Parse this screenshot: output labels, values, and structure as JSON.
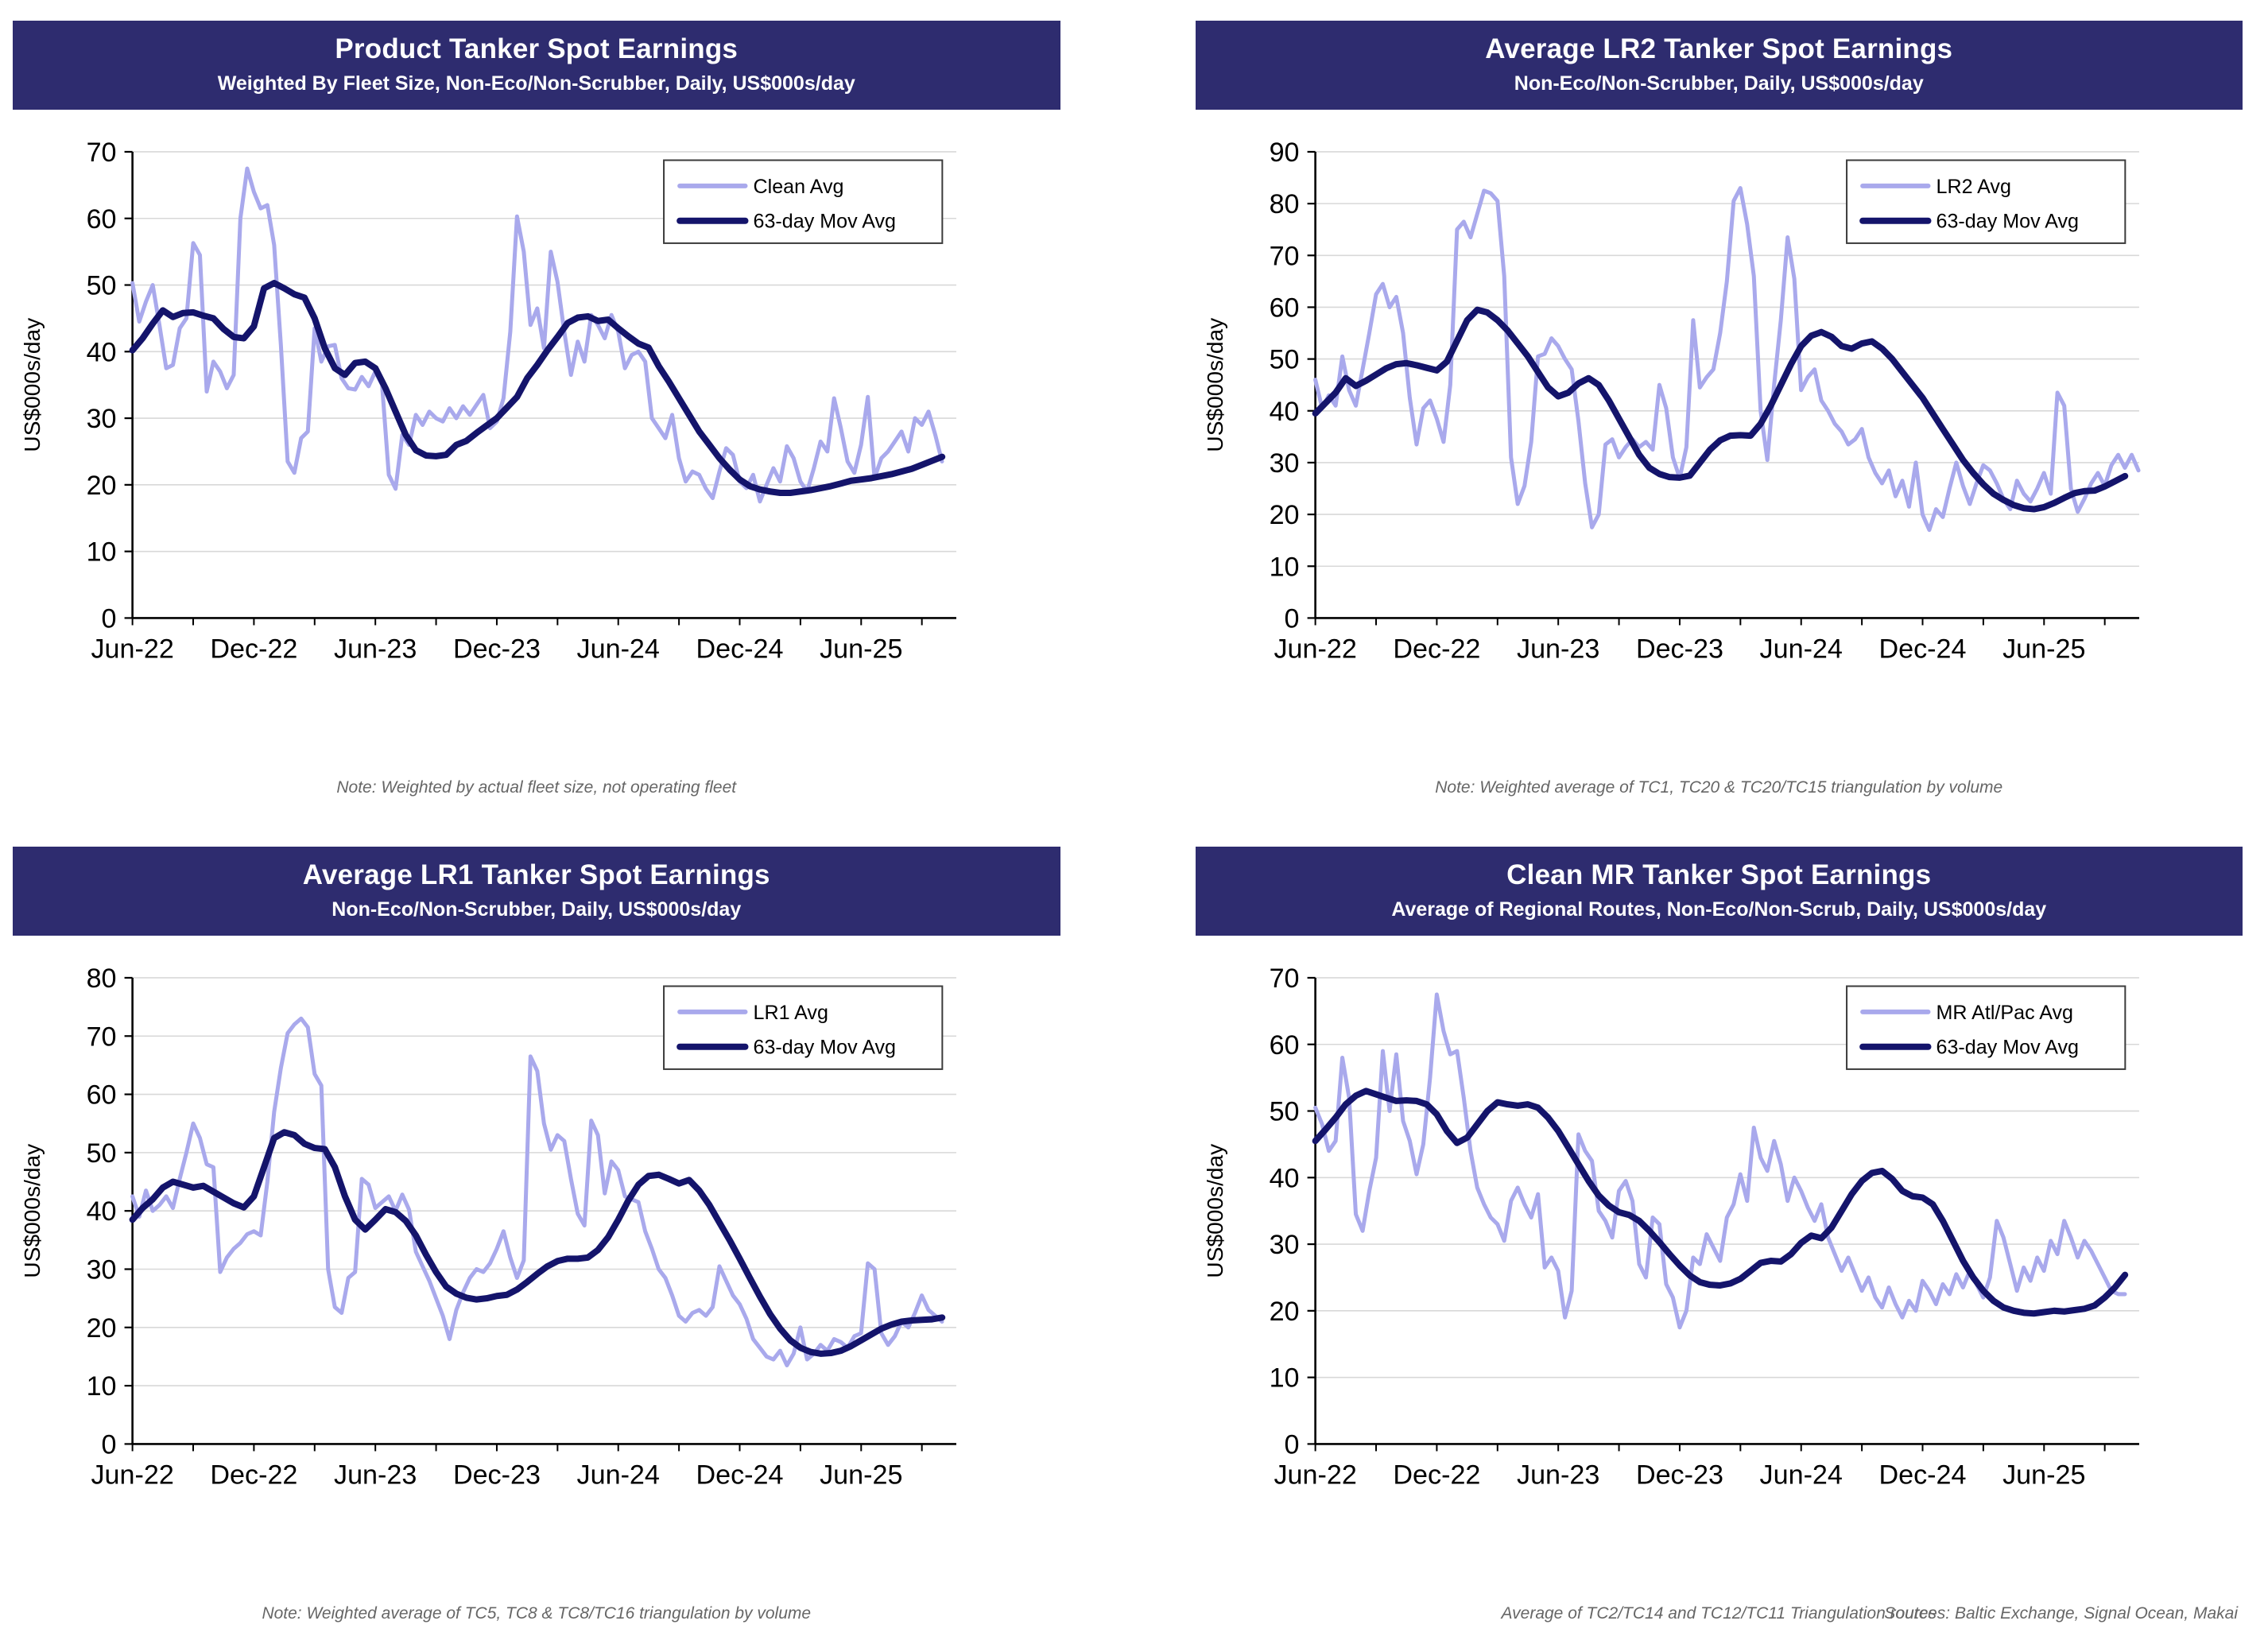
{
  "styles": {
    "header_bg": "#2E2C6F",
    "daily_color": "#A9A9EC",
    "ma_color": "#14146B",
    "grid_color": "#D8D8D8",
    "axis_color": "#000000",
    "note_color": "#666666",
    "legend_border": "#3C3C3C"
  },
  "chart_data": [
    {
      "type": "line",
      "title": "Product Tanker Spot Earnings",
      "subtitle": "Weighted By Fleet Size, Non-Eco/Non-Scrubber, Daily, US$000s/day",
      "ylabel": "US$000s/day",
      "ylim": [
        0,
        70
      ],
      "ytick_step": 10,
      "x_tick_labels": [
        "Jun-22",
        "Dec-22",
        "Jun-23",
        "Dec-23",
        "Jun-24",
        "Dec-24",
        "Jun-25"
      ],
      "x_label_step_months": 6,
      "x_minor_tick_step_months": 3,
      "x_domain_months": 40.7,
      "grid": true,
      "legend_position": "top-right",
      "notes": [
        "Note: Weighted by actual fleet size, not operating fleet"
      ],
      "series": [
        {
          "name": "Clean Avg",
          "role": "daily",
          "x0": 0,
          "dx": 0.3333,
          "values": [
            50.3,
            44.5,
            47.5,
            50,
            44,
            37.5,
            38,
            43.5,
            45,
            56.3,
            54.5,
            34,
            38.5,
            37,
            34.5,
            36.5,
            60,
            67.5,
            64,
            61.5,
            62,
            56,
            41,
            23.5,
            21.8,
            27,
            28,
            43.5,
            38.5,
            40.8,
            41,
            36,
            34.5,
            34.3,
            36.2,
            34.8,
            37,
            35,
            21.5,
            19.4,
            27.5,
            26,
            30.5,
            29,
            31,
            30,
            29.5,
            31.5,
            30,
            31.8,
            30.5,
            32,
            33.5,
            28.5,
            29.5,
            33,
            43,
            60.3,
            55,
            44,
            46.5,
            40.5,
            55,
            50.5,
            43,
            36.5,
            41.5,
            38.5,
            45.5,
            44,
            42,
            45.5,
            43,
            37.5,
            39.5,
            40,
            38.5,
            30,
            28.5,
            27,
            30.5,
            24,
            20.5,
            22,
            21.5,
            19.4,
            18,
            22,
            25.5,
            24.5,
            20.5,
            19.5,
            21.5,
            17.5,
            20,
            22.5,
            20.5,
            25.8,
            24,
            20.5,
            19,
            22.5,
            26.5,
            25,
            33,
            28.5,
            23.5,
            21.8,
            26,
            33.2,
            21,
            24,
            25,
            26.5,
            28,
            25,
            30,
            29,
            31,
            27.5,
            23.5
          ]
        },
        {
          "name": "63-day Mov Avg",
          "role": "ma",
          "x0": 0,
          "dx": 0.5,
          "values": [
            40.2,
            42,
            44.2,
            46.2,
            45.2,
            45.8,
            45.9,
            45.4,
            45,
            43.4,
            42.2,
            42,
            43.8,
            49.5,
            50.3,
            49.5,
            48.6,
            48.1,
            45,
            40.5,
            37.5,
            36.5,
            38.3,
            38.5,
            37.5,
            34.5,
            31,
            27.5,
            25.2,
            24.4,
            24.3,
            24.5,
            26,
            26.6,
            27.8,
            28.9,
            30,
            31.6,
            33.2,
            36,
            38,
            40.2,
            42.2,
            44.3,
            45.1,
            45.3,
            44.6,
            44.8,
            43.5,
            42.3,
            41.2,
            40.6,
            37.8,
            35.5,
            33,
            30.5,
            28,
            26,
            24,
            22.3,
            20.8,
            19.8,
            19.3,
            19,
            18.8,
            18.8,
            19,
            19.2,
            19.5,
            19.8,
            20.2,
            20.6,
            20.8,
            21,
            21.3,
            21.6,
            22,
            22.4,
            23,
            23.6,
            24.2
          ]
        }
      ]
    },
    {
      "type": "line",
      "title": "Average LR2 Tanker Spot Earnings",
      "subtitle": "Non-Eco/Non-Scrubber, Daily, US$000s/day",
      "ylabel": "US$000s/day",
      "ylim": [
        0,
        90
      ],
      "ytick_step": 10,
      "x_tick_labels": [
        "Jun-22",
        "Dec-22",
        "Jun-23",
        "Dec-23",
        "Jun-24",
        "Dec-24",
        "Jun-25"
      ],
      "x_label_step_months": 6,
      "x_minor_tick_step_months": 3,
      "x_domain_months": 40.7,
      "grid": true,
      "legend_position": "top-right",
      "notes": [
        "Note: Weighted average of TC1, TC20 & TC20/TC15 triangulation by volume"
      ],
      "series": [
        {
          "name": "LR2 Avg",
          "role": "daily",
          "x0": 0,
          "dx": 0.3333,
          "values": [
            46,
            40.5,
            43,
            41,
            50.5,
            44,
            41,
            48,
            55,
            62.5,
            64.5,
            60,
            62,
            55,
            42.5,
            33.5,
            40.5,
            42,
            38.5,
            34,
            45,
            75,
            76.5,
            73.5,
            78,
            82.5,
            82,
            80.5,
            66,
            31,
            22,
            25.5,
            34,
            50.5,
            51,
            54,
            52.5,
            50,
            48,
            38,
            26,
            17.5,
            20,
            33.5,
            34.5,
            31,
            33,
            34.5,
            33,
            34,
            32.5,
            45,
            40.5,
            31,
            27,
            33,
            57.5,
            44.5,
            46.5,
            48,
            55,
            65,
            80.5,
            83,
            76,
            66,
            40,
            30.5,
            45,
            57.5,
            73.5,
            65.5,
            44,
            46.5,
            48,
            42,
            40,
            37.5,
            36,
            33.5,
            34.5,
            36.5,
            31,
            28,
            26,
            28.5,
            23.5,
            26.5,
            21.5,
            30,
            20,
            17,
            21,
            19.5,
            25,
            30,
            25.5,
            22,
            26,
            29.5,
            28.5,
            26,
            23,
            21,
            26.5,
            24,
            22.5,
            25,
            28,
            24,
            43.5,
            41,
            25,
            20.5,
            23,
            26,
            28,
            25.5,
            29.5,
            31.5,
            29,
            31.5,
            28.5
          ]
        },
        {
          "name": "63-day Mov Avg",
          "role": "ma",
          "x0": 0,
          "dx": 0.5,
          "values": [
            39.5,
            41.5,
            43.5,
            46.3,
            44.8,
            45.8,
            47,
            48.2,
            49,
            49.2,
            48.8,
            48.3,
            47.8,
            49.5,
            53.5,
            57.5,
            59.5,
            59,
            57.5,
            55.5,
            53,
            50.5,
            47.5,
            44.5,
            42.8,
            43.5,
            45.3,
            46.3,
            45,
            42,
            38.5,
            35,
            31.5,
            29,
            27.8,
            27.2,
            27.1,
            27.5,
            30,
            32.5,
            34.3,
            35.2,
            35.3,
            35.2,
            37.5,
            41,
            45,
            49,
            52.5,
            54.5,
            55.2,
            54.3,
            52.5,
            52,
            53,
            53.4,
            52,
            50,
            47.5,
            45,
            42.5,
            39.5,
            36.5,
            33.5,
            30.5,
            28,
            25.8,
            24,
            22.8,
            21.8,
            21.2,
            21,
            21.4,
            22.2,
            23.2,
            24.1,
            24.5,
            24.6,
            25.4,
            26.4,
            27.4
          ]
        }
      ]
    },
    {
      "type": "line",
      "title": "Average LR1 Tanker Spot Earnings",
      "subtitle": "Non-Eco/Non-Scrubber, Daily, US$000s/day",
      "ylabel": "US$000s/day",
      "ylim": [
        0,
        80
      ],
      "ytick_step": 10,
      "x_tick_labels": [
        "Jun-22",
        "Dec-22",
        "Jun-23",
        "Dec-23",
        "Jun-24",
        "Dec-24",
        "Jun-25"
      ],
      "x_label_step_months": 6,
      "x_minor_tick_step_months": 3,
      "x_domain_months": 40.7,
      "grid": true,
      "legend_position": "top-right",
      "notes": [
        "Note: Weighted average of TC5, TC8 & TC8/TC16 triangulation by volume"
      ],
      "series": [
        {
          "name": "LR1 Avg",
          "role": "daily",
          "x0": 0,
          "dx": 0.3333,
          "values": [
            42.5,
            39,
            43.5,
            40,
            41,
            42.5,
            40.5,
            45.5,
            50,
            55,
            52.5,
            48,
            47.5,
            29.5,
            32,
            33.5,
            34.5,
            36,
            36.5,
            35.8,
            45,
            57,
            64.5,
            70.5,
            72,
            73,
            71.5,
            63.5,
            61.5,
            30,
            23.5,
            22.5,
            28.5,
            29.5,
            45.5,
            44.5,
            40.5,
            41.5,
            42.5,
            40,
            42.8,
            40.2,
            33,
            30.5,
            28,
            25,
            22,
            18,
            23,
            26,
            28.5,
            30,
            29.5,
            31,
            33.5,
            36.5,
            32,
            28.5,
            31.5,
            66.5,
            64,
            55,
            50.5,
            53,
            52,
            45.5,
            39.5,
            37.5,
            55.5,
            53,
            43,
            48.5,
            47,
            42.5,
            42,
            41.5,
            36.5,
            33.5,
            30,
            28.5,
            25.5,
            22,
            21,
            22.5,
            23,
            22,
            23.5,
            30.5,
            28,
            25.5,
            24,
            21.5,
            18,
            16.5,
            15,
            14.5,
            16,
            13.5,
            15.5,
            20,
            14.5,
            15.5,
            17,
            16,
            18,
            17.5,
            16.5,
            18.5,
            19,
            31,
            30,
            19,
            17,
            18.5,
            21,
            20,
            22.5,
            25.5,
            23,
            22,
            21
          ]
        },
        {
          "name": "63-day Mov Avg",
          "role": "ma",
          "x0": 0,
          "dx": 0.5,
          "values": [
            38.5,
            40.5,
            42,
            44,
            45,
            44.5,
            44,
            44.3,
            43.3,
            42.3,
            41.3,
            40.6,
            42.5,
            47.5,
            52.5,
            53.5,
            53,
            51.5,
            50.8,
            50.6,
            47.5,
            42.5,
            38.5,
            36.8,
            38.5,
            40.3,
            39.8,
            38.3,
            35.8,
            32.5,
            29.5,
            27,
            25.8,
            25.1,
            24.8,
            25,
            25.4,
            25.6,
            26.5,
            27.8,
            29.2,
            30.5,
            31.4,
            31.8,
            31.8,
            32,
            33.3,
            35.5,
            38.5,
            41.8,
            44.5,
            46,
            46.2,
            45.5,
            44.7,
            45.3,
            43.5,
            41,
            38,
            35,
            31.8,
            28.5,
            25.3,
            22.3,
            19.8,
            17.8,
            16.5,
            15.8,
            15.5,
            15.6,
            16,
            16.8,
            17.8,
            18.8,
            19.8,
            20.5,
            21,
            21.2,
            21.3,
            21.4,
            21.7
          ]
        }
      ]
    },
    {
      "type": "line",
      "title": "Clean MR Tanker Spot Earnings",
      "subtitle": "Average of Regional Routes, Non-Eco/Non-Scrub, Daily, US$000s/day",
      "ylabel": "US$000s/day",
      "ylim": [
        0,
        70
      ],
      "ytick_step": 10,
      "x_tick_labels": [
        "Jun-22",
        "Dec-22",
        "Jun-23",
        "Dec-23",
        "Jun-24",
        "Dec-24",
        "Jun-25"
      ],
      "x_label_step_months": 6,
      "x_minor_tick_step_months": 3,
      "x_domain_months": 40.7,
      "grid": true,
      "legend_position": "top-right",
      "notes": [
        "Average of TC2/TC14 and TC12/TC11 Triangulation routes",
        "Sources: Baltic Exchange, Signal Ocean, Makai"
      ],
      "series": [
        {
          "name": "MR Atl/Pac Avg",
          "role": "daily",
          "x0": 0,
          "dx": 0.3333,
          "values": [
            50.5,
            48,
            44,
            45.5,
            58,
            52,
            34.5,
            32,
            38,
            43,
            59,
            50,
            58.5,
            48.5,
            45.5,
            40.5,
            45,
            55,
            67.5,
            62,
            58.5,
            59,
            52,
            44,
            38.5,
            36,
            34,
            33,
            30.5,
            36.5,
            38.5,
            36,
            34,
            37.5,
            26.5,
            28,
            26,
            19,
            23,
            46.5,
            44,
            42.5,
            35,
            33.5,
            31,
            38,
            39.5,
            36.5,
            27,
            25,
            34,
            33,
            24,
            22,
            17.5,
            20,
            28,
            27,
            31.5,
            29.5,
            27.5,
            34,
            36,
            40.5,
            36.5,
            47.5,
            43,
            41,
            45.5,
            42,
            36.5,
            40,
            38,
            35.5,
            33.5,
            36,
            31,
            28.5,
            26,
            28,
            25.5,
            23,
            25,
            22,
            20.5,
            23.5,
            21,
            19,
            21.5,
            20,
            24.5,
            23,
            21,
            24,
            22.5,
            25.5,
            23.5,
            26,
            24,
            22,
            25,
            33.5,
            31,
            27,
            23,
            26.5,
            24.5,
            28,
            26,
            30.5,
            28.5,
            33.5,
            31,
            28,
            30.5,
            29,
            27,
            25,
            23,
            22.5,
            22.5
          ]
        },
        {
          "name": "63-day Mov Avg",
          "role": "ma",
          "x0": 0,
          "dx": 0.5,
          "values": [
            45.5,
            47.2,
            49,
            51,
            52.3,
            53,
            52.5,
            52,
            51.5,
            51.6,
            51.5,
            51,
            49.5,
            47,
            45.2,
            46,
            48,
            50,
            51.3,
            51,
            50.8,
            51,
            50.5,
            49,
            47,
            44.5,
            42,
            39.5,
            37.3,
            35.8,
            34.8,
            34.4,
            33.5,
            32,
            30.3,
            28.5,
            26.8,
            25.3,
            24.3,
            23.9,
            23.8,
            24.1,
            24.8,
            26,
            27.2,
            27.5,
            27.4,
            28.5,
            30.2,
            31.3,
            30.9,
            32.5,
            35,
            37.5,
            39.5,
            40.7,
            41,
            39.8,
            38,
            37.2,
            37,
            36,
            33.5,
            30.5,
            27.5,
            25,
            23,
            21.5,
            20.5,
            20,
            19.7,
            19.6,
            19.8,
            20,
            19.9,
            20.1,
            20.3,
            20.8,
            22,
            23.5,
            25.4
          ]
        }
      ]
    }
  ]
}
